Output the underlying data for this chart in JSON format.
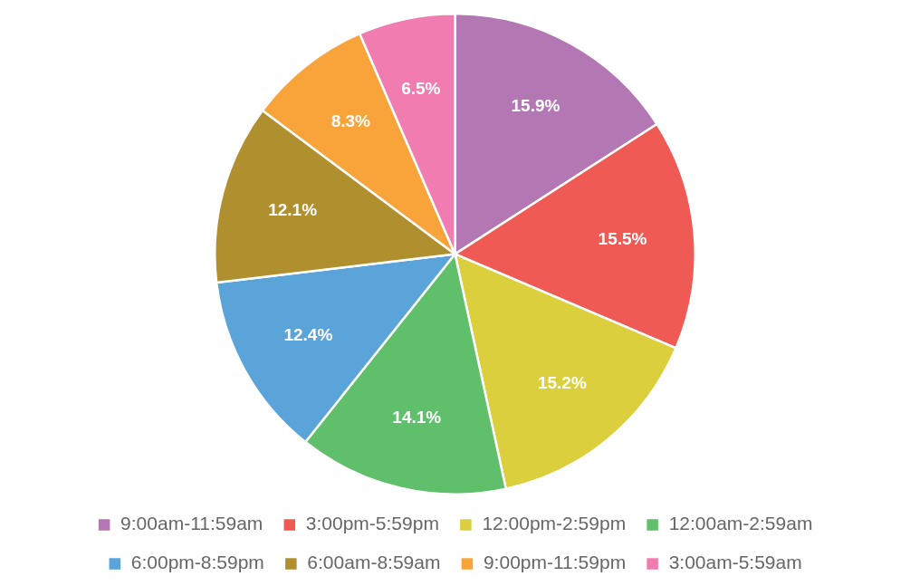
{
  "chart_data": {
    "type": "pie",
    "categories": [
      "9:00am-11:59am",
      "3:00pm-5:59pm",
      "12:00pm-2:59pm",
      "12:00am-2:59am",
      "6:00pm-8:59pm",
      "6:00am-8:59am",
      "9:00pm-11:59pm",
      "3:00am-5:59am"
    ],
    "values": [
      15.9,
      15.5,
      15.2,
      14.1,
      12.4,
      12.1,
      8.3,
      6.5
    ],
    "colors": [
      "#b377b3",
      "#f05a55",
      "#dccf3e",
      "#5fbf6a",
      "#5ba4da",
      "#b08f2e",
      "#f9a43a",
      "#f07cb0"
    ],
    "value_labels": [
      "15.9%",
      "15.5%",
      "15.2%",
      "14.1%",
      "12.4%",
      "12.1%",
      "8.3%",
      "6.5%"
    ],
    "legend": "bottom"
  }
}
